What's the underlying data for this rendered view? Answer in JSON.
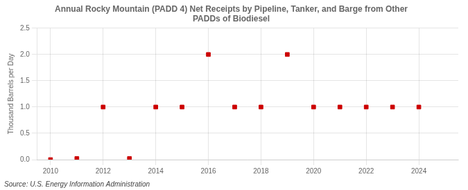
{
  "chart_data": {
    "type": "scatter",
    "title": "Annual Rocky Mountain (PADD 4) Net Receipts by Pipeline, Tanker, and Barge from Other\nPADDs of Biodiesel",
    "ylabel": "Thousand Barrels per Day",
    "annotation": "Source: U.S. Energy Information Administration",
    "x": [
      2010,
      2011,
      2012,
      2013,
      2014,
      2015,
      2016,
      2017,
      2018,
      2019,
      2020,
      2021,
      2022,
      2023,
      2024
    ],
    "values": [
      0.0,
      0.02,
      1.0,
      0.02,
      1.0,
      1.0,
      2.0,
      1.0,
      1.0,
      2.0,
      1.0,
      1.0,
      1.0,
      1.0,
      1.0
    ],
    "color": "#cc0000",
    "marker": "square",
    "xlim": [
      2009.5,
      2025.5
    ],
    "xticks": [
      2010,
      2012,
      2014,
      2016,
      2018,
      2020,
      2022,
      2024
    ],
    "ylim": [
      0,
      2.5
    ],
    "yticks": [
      {
        "value": 0.0,
        "label": "0.0"
      },
      0.5,
      {
        "value": 1.0,
        "label": "1.0"
      },
      1.5,
      {
        "value": 2.0,
        "label": "2.0"
      },
      2.5
    ],
    "grid": true
  }
}
